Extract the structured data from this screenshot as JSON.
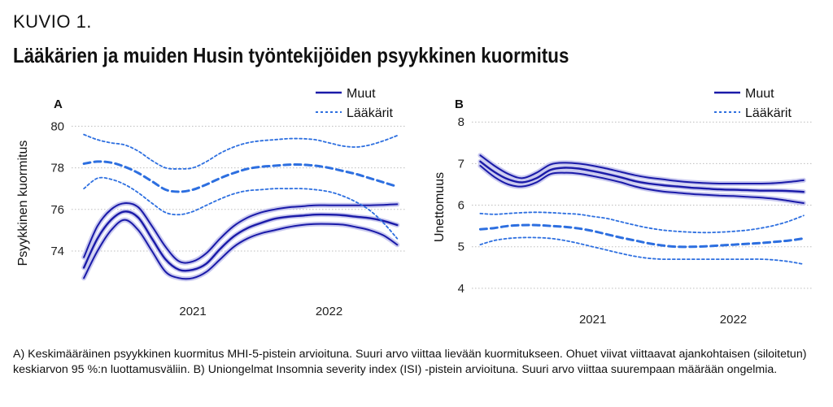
{
  "header": {
    "figure_label": "KUVIO 1.",
    "title": "Lääkärien ja muiden Husin työntekijöiden psyykkinen kuormitus"
  },
  "caption": "A) Keskimääräinen psyykkinen kuormitus MHI-5-pistein arvioituna. Suuri arvo viittaa lievään kuormitukseen. Ohuet viivat viittaavat ajankohtaisen (siloitetun) keskiarvon 95 %:n luottamusväliin. B) Uniongelmat Insomnia severity index (ISI) -pistein arvioituna. Suuri arvo viittaa suurempaan määrään ongelmia.",
  "colors": {
    "muut": "#1a1aa8",
    "laakarit": "#2d6fe0",
    "halo": "#c9c9ef",
    "grid": "#bdbdbd"
  },
  "chart_data": [
    {
      "type": "line",
      "panel": "A",
      "ylabel": "Psyykkinen kuormitus",
      "ylim": [
        72.4,
        80.6
      ],
      "yticks": [
        74,
        76,
        78,
        80
      ],
      "xlim": [
        2020.11,
        2022.57
      ],
      "xticks": [
        2021,
        2022
      ],
      "grid": "horizontal",
      "legend": {
        "position": "top-right",
        "entries": [
          "Muut",
          "Lääkärit"
        ]
      },
      "series": [
        {
          "name": "Muut",
          "style": "solid",
          "x": [
            2020.2,
            2020.3,
            2020.4,
            2020.5,
            2020.6,
            2020.7,
            2020.8,
            2020.9,
            2021.0,
            2021.1,
            2021.2,
            2021.3,
            2021.4,
            2021.5,
            2021.6,
            2021.7,
            2021.8,
            2021.9,
            2022.0,
            2022.1,
            2022.2,
            2022.3,
            2022.4,
            2022.5
          ],
          "y": [
            73.2,
            74.6,
            75.5,
            75.9,
            75.6,
            74.6,
            73.6,
            73.1,
            73.1,
            73.4,
            74.1,
            74.7,
            75.1,
            75.35,
            75.55,
            75.65,
            75.7,
            75.75,
            75.75,
            75.72,
            75.65,
            75.58,
            75.45,
            75.25
          ],
          "ci_lower": [
            72.7,
            74.0,
            75.0,
            75.5,
            75.0,
            74.0,
            73.0,
            72.7,
            72.7,
            73.0,
            73.6,
            74.2,
            74.6,
            74.85,
            75.0,
            75.15,
            75.25,
            75.3,
            75.3,
            75.27,
            75.15,
            75.0,
            74.75,
            74.3
          ],
          "ci_upper": [
            73.7,
            75.2,
            76.0,
            76.3,
            76.1,
            75.2,
            74.2,
            73.5,
            73.5,
            73.9,
            74.6,
            75.2,
            75.6,
            75.85,
            76.0,
            76.1,
            76.15,
            76.2,
            76.2,
            76.2,
            76.2,
            76.2,
            76.22,
            76.25
          ]
        },
        {
          "name": "Lääkärit",
          "style": "dashed",
          "x": [
            2020.2,
            2020.3,
            2020.4,
            2020.5,
            2020.6,
            2020.7,
            2020.8,
            2020.9,
            2021.0,
            2021.1,
            2021.2,
            2021.3,
            2021.4,
            2021.5,
            2021.6,
            2021.7,
            2021.8,
            2021.9,
            2022.0,
            2022.1,
            2022.2,
            2022.3,
            2022.4,
            2022.5
          ],
          "y": [
            78.2,
            78.3,
            78.25,
            78.05,
            77.75,
            77.35,
            76.95,
            76.85,
            76.95,
            77.2,
            77.5,
            77.75,
            77.95,
            78.05,
            78.1,
            78.15,
            78.15,
            78.1,
            78.0,
            77.85,
            77.7,
            77.5,
            77.3,
            77.1
          ],
          "ci_lower": [
            77.0,
            77.5,
            77.45,
            77.2,
            76.8,
            76.3,
            75.85,
            75.75,
            75.9,
            76.2,
            76.5,
            76.75,
            76.9,
            76.95,
            77.0,
            77.0,
            77.0,
            76.95,
            76.85,
            76.65,
            76.35,
            75.95,
            75.35,
            74.6
          ],
          "ci_upper": [
            79.6,
            79.35,
            79.2,
            79.1,
            78.8,
            78.35,
            78.0,
            77.95,
            78.0,
            78.3,
            78.7,
            79.0,
            79.2,
            79.3,
            79.35,
            79.4,
            79.4,
            79.35,
            79.2,
            79.05,
            79.0,
            79.1,
            79.3,
            79.55
          ]
        }
      ]
    },
    {
      "type": "line",
      "panel": "B",
      "ylabel": "Unettomuus",
      "ylim": [
        3.9,
        8.2
      ],
      "yticks": [
        4,
        5,
        6,
        7,
        8
      ],
      "xlim": [
        2020.14,
        2022.57
      ],
      "xticks": [
        2021,
        2022
      ],
      "grid": "horizontal",
      "legend": {
        "position": "top-right",
        "entries": [
          "Muut",
          "Lääkärit"
        ]
      },
      "series": [
        {
          "name": "Muut",
          "style": "solid",
          "x": [
            2020.2,
            2020.3,
            2020.4,
            2020.5,
            2020.6,
            2020.7,
            2020.8,
            2020.9,
            2021.0,
            2021.1,
            2021.2,
            2021.3,
            2021.4,
            2021.5,
            2021.6,
            2021.7,
            2021.8,
            2021.9,
            2022.0,
            2022.1,
            2022.2,
            2022.3,
            2022.4,
            2022.5
          ],
          "y": [
            7.05,
            6.8,
            6.62,
            6.55,
            6.65,
            6.85,
            6.9,
            6.88,
            6.82,
            6.75,
            6.67,
            6.58,
            6.52,
            6.48,
            6.45,
            6.42,
            6.4,
            6.38,
            6.37,
            6.36,
            6.35,
            6.35,
            6.34,
            6.32
          ],
          "ci_lower": [
            6.95,
            6.68,
            6.5,
            6.45,
            6.55,
            6.75,
            6.78,
            6.76,
            6.7,
            6.63,
            6.55,
            6.45,
            6.38,
            6.33,
            6.3,
            6.27,
            6.25,
            6.23,
            6.22,
            6.2,
            6.18,
            6.15,
            6.1,
            6.05
          ],
          "ci_upper": [
            7.2,
            6.95,
            6.75,
            6.65,
            6.78,
            6.98,
            7.02,
            7.0,
            6.95,
            6.88,
            6.8,
            6.72,
            6.66,
            6.62,
            6.58,
            6.55,
            6.53,
            6.52,
            6.52,
            6.52,
            6.52,
            6.53,
            6.56,
            6.6
          ]
        },
        {
          "name": "Lääkärit",
          "style": "dashed",
          "x": [
            2020.2,
            2020.3,
            2020.4,
            2020.5,
            2020.6,
            2020.7,
            2020.8,
            2020.9,
            2021.0,
            2021.1,
            2021.2,
            2021.3,
            2021.4,
            2021.5,
            2021.6,
            2021.7,
            2021.8,
            2021.9,
            2022.0,
            2022.1,
            2022.2,
            2022.3,
            2022.4,
            2022.5
          ],
          "y": [
            5.42,
            5.45,
            5.5,
            5.52,
            5.52,
            5.5,
            5.48,
            5.44,
            5.38,
            5.3,
            5.22,
            5.15,
            5.08,
            5.03,
            5.0,
            5.0,
            5.01,
            5.03,
            5.05,
            5.07,
            5.09,
            5.12,
            5.15,
            5.2
          ],
          "ci_lower": [
            5.05,
            5.15,
            5.2,
            5.22,
            5.22,
            5.2,
            5.15,
            5.08,
            5.0,
            4.92,
            4.84,
            4.77,
            4.72,
            4.7,
            4.7,
            4.7,
            4.7,
            4.7,
            4.7,
            4.7,
            4.7,
            4.68,
            4.64,
            4.58
          ],
          "ci_upper": [
            5.8,
            5.78,
            5.8,
            5.82,
            5.83,
            5.82,
            5.8,
            5.78,
            5.73,
            5.68,
            5.6,
            5.52,
            5.45,
            5.4,
            5.37,
            5.35,
            5.34,
            5.35,
            5.37,
            5.4,
            5.45,
            5.52,
            5.62,
            5.75
          ]
        }
      ]
    }
  ]
}
